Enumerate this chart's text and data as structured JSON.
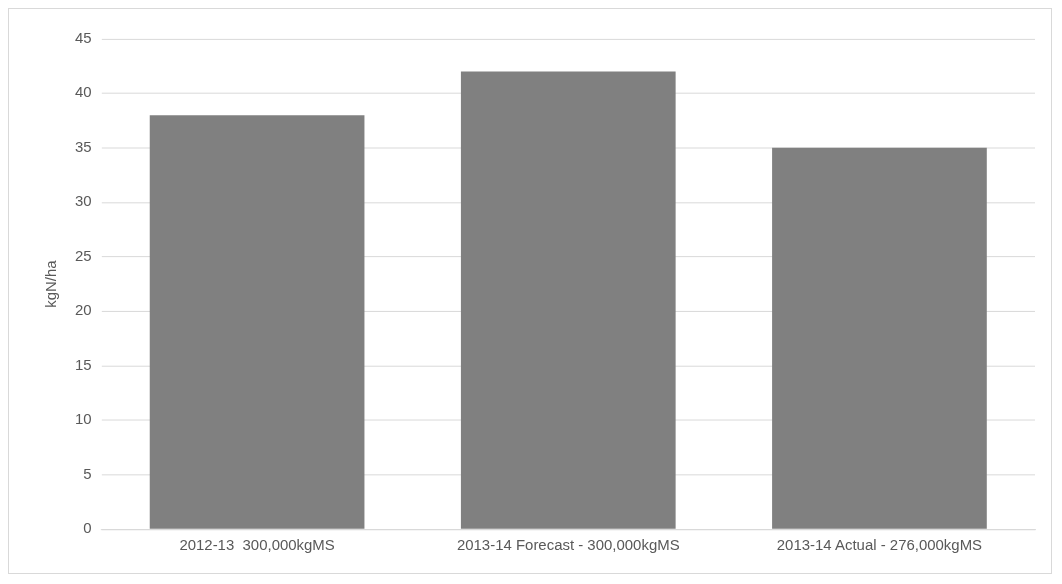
{
  "chart_data": {
    "type": "bar",
    "ylabel": "kgN/ha",
    "categories": [
      "2012-13  300,000kgMS",
      "2013-14 Forecast - 300,000kgMS",
      "2013-14 Actual - 276,000kgMS"
    ],
    "values": [
      38,
      42,
      35
    ],
    "color": "#808080",
    "ylim": [
      0,
      45
    ],
    "yticks": [
      0,
      5,
      10,
      15,
      20,
      25,
      30,
      35,
      40,
      45
    ],
    "grid": "y",
    "legend": false
  }
}
